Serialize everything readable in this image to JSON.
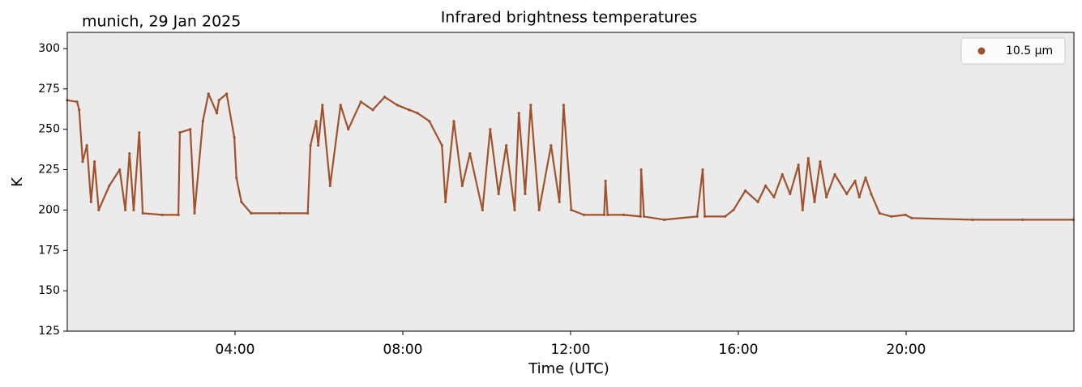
{
  "chart_data": {
    "type": "scatter",
    "title": "Infrared brightness temperatures",
    "annotation": "munich, 29 Jan 2025",
    "xlabel": "Time (UTC)",
    "ylabel": "K",
    "xlim": [
      "00:00",
      "24:00"
    ],
    "xticks": [
      "04:00",
      "08:00",
      "12:00",
      "16:00",
      "20:00"
    ],
    "ylim": [
      125,
      310
    ],
    "yticks": [
      125,
      150,
      175,
      200,
      225,
      250,
      275,
      300
    ],
    "legend": "upper right",
    "background": "#ebebeb",
    "series": [
      {
        "name": "10.5 µm",
        "color": "#a0522d",
        "x": [
          "00:00",
          "00:14",
          "00:17",
          "00:22",
          "00:28",
          "00:34",
          "00:39",
          "00:45",
          "01:00",
          "01:15",
          "01:23",
          "01:29",
          "01:35",
          "01:43",
          "01:48",
          "02:16",
          "02:39",
          "02:41",
          "02:56",
          "03:02",
          "03:14",
          "03:22",
          "03:34",
          "03:37",
          "03:48",
          "03:59",
          "04:02",
          "04:09",
          "04:23",
          "05:04",
          "05:44",
          "05:48",
          "05:56",
          "05:59",
          "06:05",
          "06:16",
          "06:31",
          "06:42",
          "07:00",
          "07:17",
          "07:34",
          "07:52",
          "08:09",
          "08:21",
          "08:38",
          "08:56",
          "09:01",
          "09:13",
          "09:25",
          "09:36",
          "09:54",
          "10:05",
          "10:17",
          "10:28",
          "10:40",
          "10:46",
          "10:55",
          "11:03",
          "11:15",
          "11:32",
          "11:44",
          "11:50",
          "12:01",
          "12:19",
          "12:48",
          "12:50",
          "12:53",
          "13:16",
          "13:40",
          "13:41",
          "13:45",
          "14:14",
          "15:01",
          "15:09",
          "15:12",
          "15:41",
          "15:53",
          "16:10",
          "16:28",
          "16:39",
          "16:51",
          "17:03",
          "17:14",
          "17:26",
          "17:32",
          "17:40",
          "17:49",
          "17:57",
          "18:06",
          "18:18",
          "18:35",
          "18:47",
          "18:53",
          "19:02",
          "19:10",
          "19:22",
          "19:39",
          "19:59",
          "20:08",
          "21:35",
          "22:47",
          "23:59"
        ],
        "values": [
          268,
          267,
          262,
          230,
          240,
          205,
          230,
          200,
          215,
          225,
          200,
          235,
          200,
          248,
          198,
          197,
          197,
          248,
          250,
          198,
          255,
          272,
          260,
          268,
          272,
          245,
          220,
          205,
          198,
          198,
          198,
          240,
          255,
          240,
          265,
          215,
          265,
          250,
          267,
          262,
          270,
          265,
          262,
          260,
          255,
          240,
          205,
          255,
          215,
          235,
          200,
          250,
          210,
          240,
          200,
          260,
          210,
          265,
          200,
          240,
          205,
          265,
          200,
          197,
          197,
          218,
          197,
          197,
          196,
          225,
          196,
          194,
          196,
          225,
          196,
          196,
          200,
          212,
          205,
          215,
          208,
          222,
          210,
          228,
          200,
          232,
          205,
          230,
          208,
          222,
          210,
          218,
          208,
          220,
          210,
          198,
          196,
          197,
          195,
          194,
          194,
          194
        ]
      }
    ]
  }
}
